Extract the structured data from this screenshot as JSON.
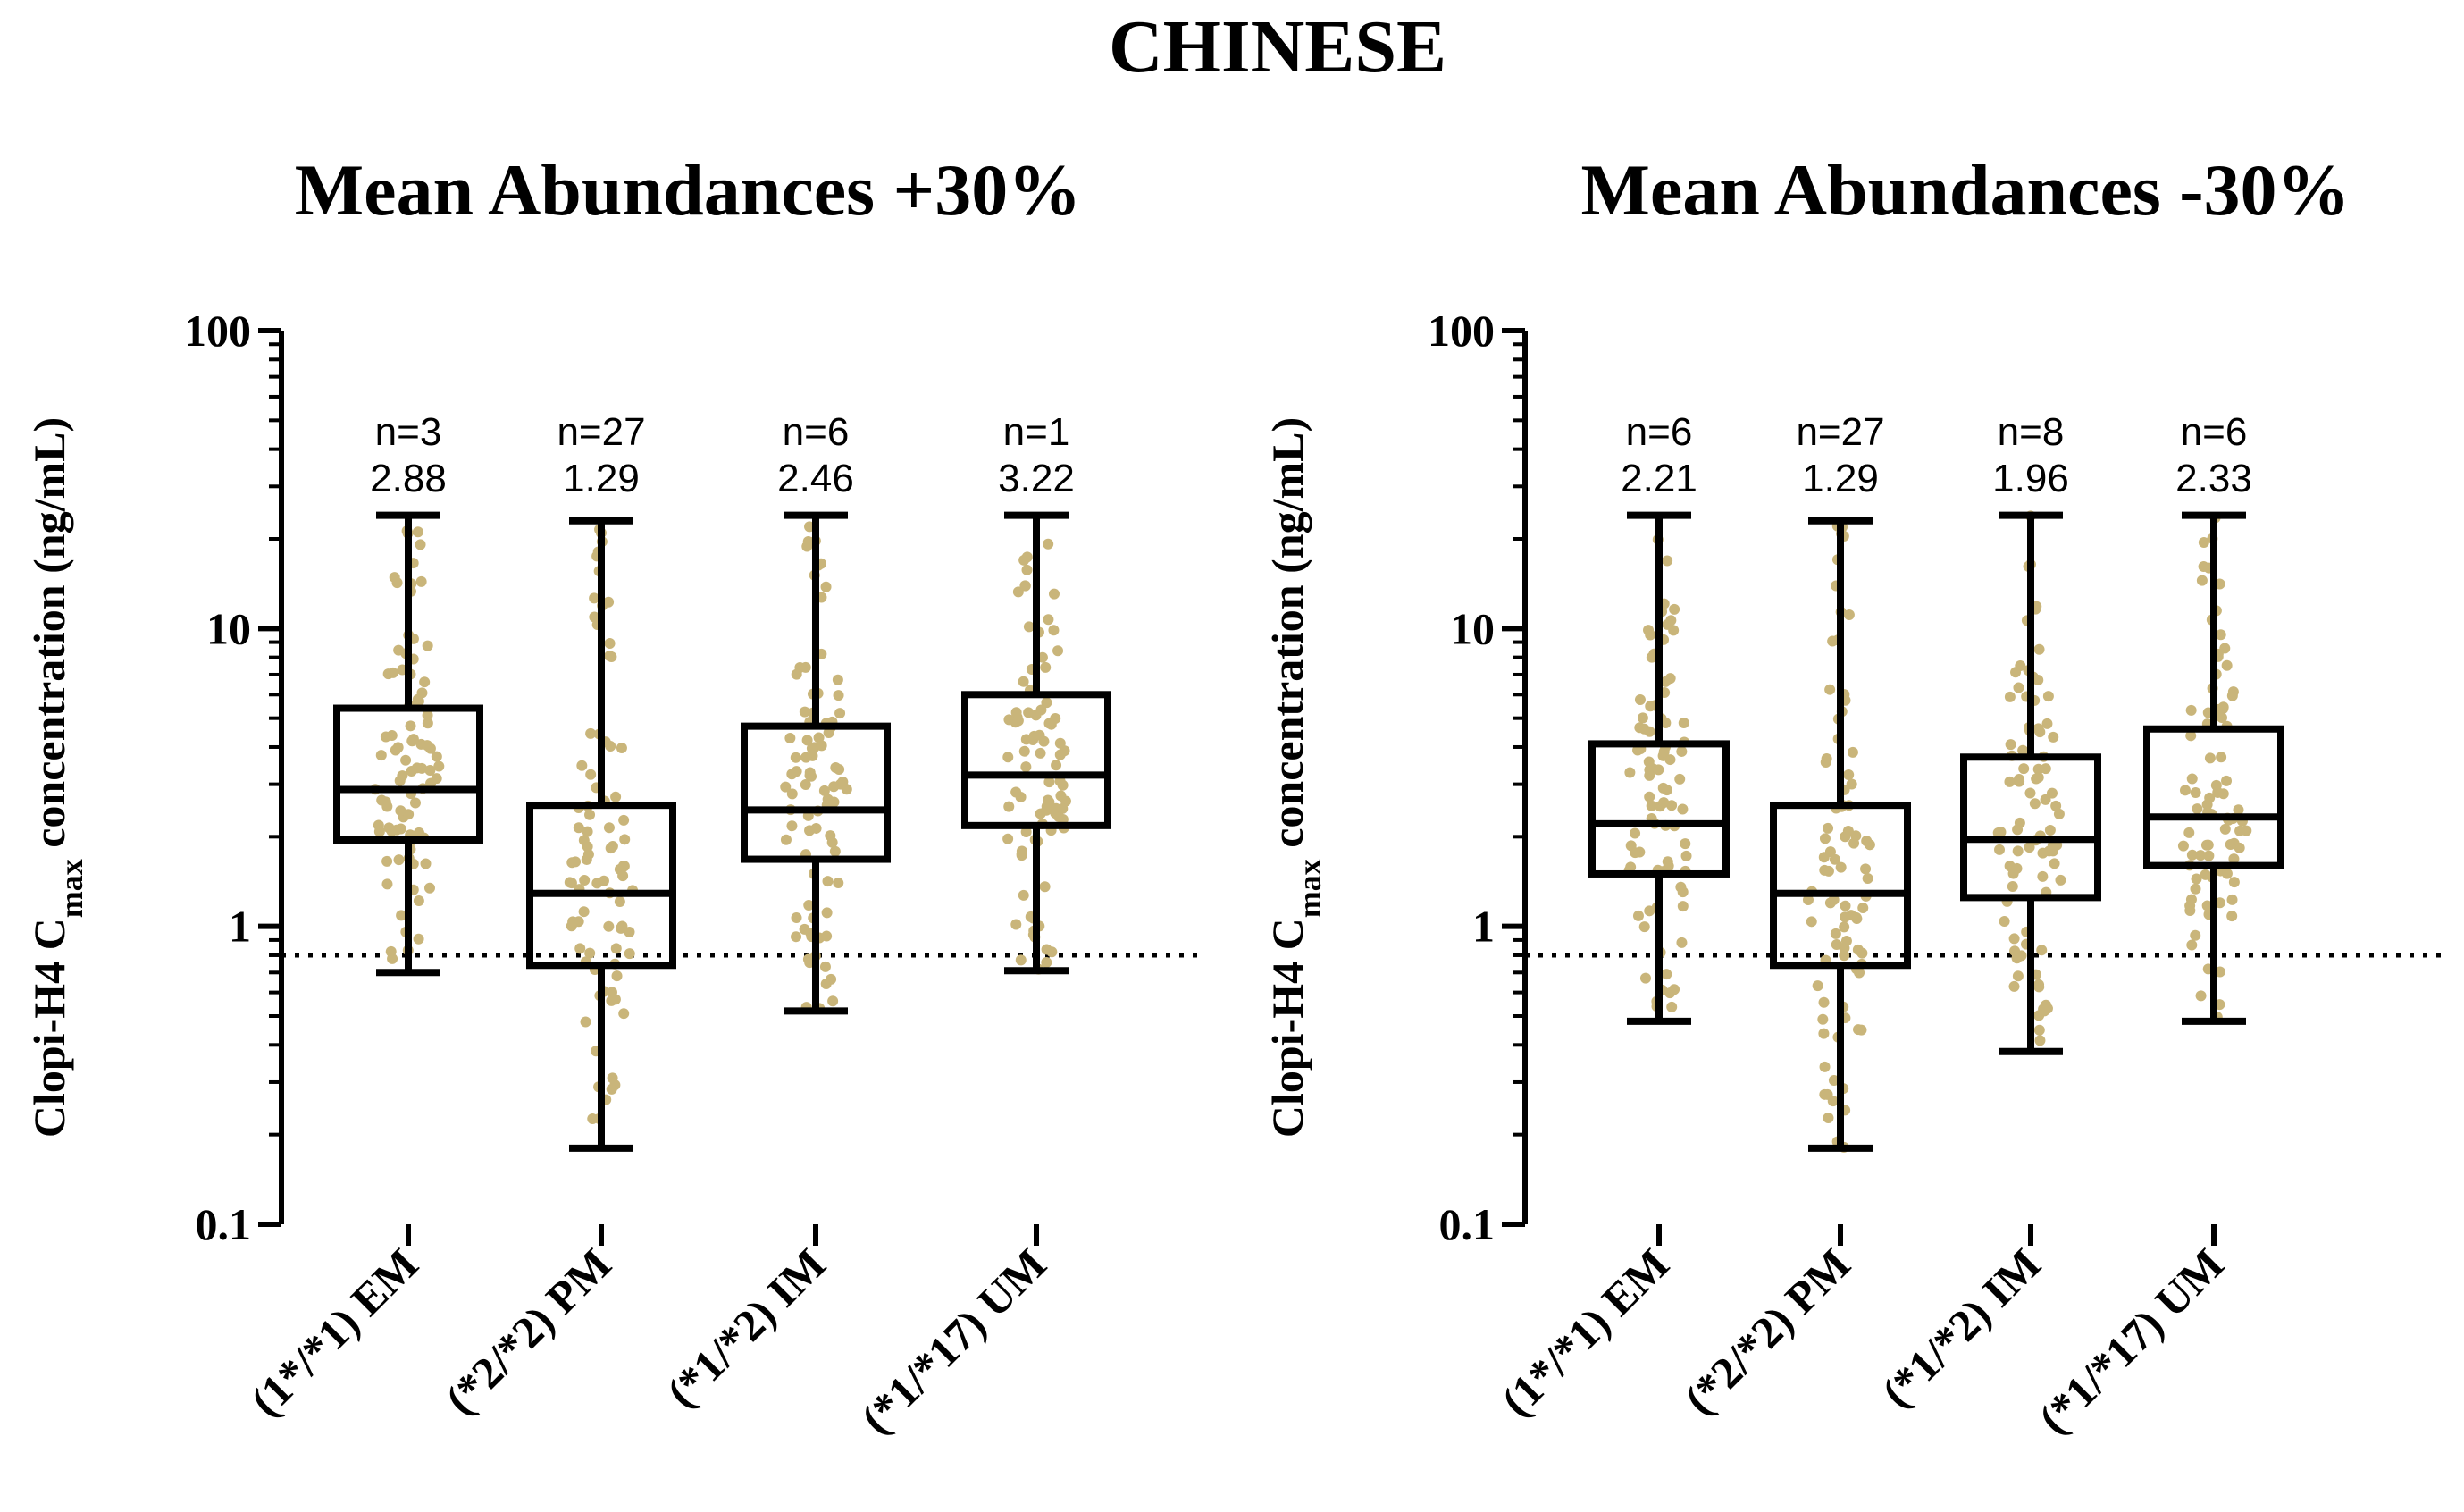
{
  "title": "CHINESE",
  "colors": {
    "dot": "#c9b57a",
    "ink": "#000000",
    "background": "#ffffff"
  },
  "chart_data": [
    {
      "type": "box",
      "subtitle": "Mean Abundances +30%",
      "ylabel_main": "Clopi-H4 C",
      "ylabel_sub": "max",
      "ylabel_tail": " concentration  (ng/mL)",
      "yscale": "log",
      "ylim": [
        0.1,
        100
      ],
      "yticks": [
        {
          "v": 100,
          "label": "100"
        },
        {
          "v": 10,
          "label": "10"
        },
        {
          "v": 1,
          "label": "1"
        },
        {
          "v": 0.1,
          "label": "0.1"
        }
      ],
      "reference_line": 0.8,
      "categories": [
        "(1*/*1) EM",
        "(*2/*2) PM",
        "(*1/*2) IM",
        "(*1/*17) UM"
      ],
      "annotations": [
        {
          "n": "n=3",
          "value": "2.88"
        },
        {
          "n": "n=27",
          "value": "1.29"
        },
        {
          "n": "n=6",
          "value": "2.46"
        },
        {
          "n": "n=1",
          "value": "3.22"
        }
      ],
      "boxes": [
        {
          "min": 0.7,
          "q1": 1.95,
          "median": 2.88,
          "q3": 5.4,
          "max": 24
        },
        {
          "min": 0.18,
          "q1": 0.74,
          "median": 1.29,
          "q3": 2.55,
          "max": 23
        },
        {
          "min": 0.52,
          "q1": 1.68,
          "median": 2.46,
          "q3": 4.7,
          "max": 24
        },
        {
          "min": 0.71,
          "q1": 2.18,
          "median": 3.22,
          "q3": 6.0,
          "max": 24
        }
      ]
    },
    {
      "type": "box",
      "subtitle": "Mean Abundances -30%",
      "ylabel_main": "Clopi-H4 C",
      "ylabel_sub": "max",
      "ylabel_tail": " concentration  (ng/mL)",
      "yscale": "log",
      "ylim": [
        0.1,
        100
      ],
      "yticks": [
        {
          "v": 100,
          "label": "100"
        },
        {
          "v": 10,
          "label": "10"
        },
        {
          "v": 1,
          "label": "1"
        },
        {
          "v": 0.1,
          "label": "0.1"
        }
      ],
      "reference_line": 0.8,
      "categories": [
        "(1*/*1) EM",
        "(*2/*2) PM",
        "(*1/*2) IM",
        "(*1/*17) UM"
      ],
      "annotations": [
        {
          "n": "n=6",
          "value": "2.21"
        },
        {
          "n": "n=27",
          "value": "1.29"
        },
        {
          "n": "n=8",
          "value": "1.96"
        },
        {
          "n": "n=6",
          "value": "2.33"
        }
      ],
      "boxes": [
        {
          "min": 0.48,
          "q1": 1.5,
          "median": 2.21,
          "q3": 4.1,
          "max": 24
        },
        {
          "min": 0.18,
          "q1": 0.74,
          "median": 1.29,
          "q3": 2.55,
          "max": 23
        },
        {
          "min": 0.38,
          "q1": 1.25,
          "median": 1.96,
          "q3": 3.7,
          "max": 24
        },
        {
          "min": 0.48,
          "q1": 1.6,
          "median": 2.33,
          "q3": 4.6,
          "max": 24
        }
      ]
    }
  ]
}
